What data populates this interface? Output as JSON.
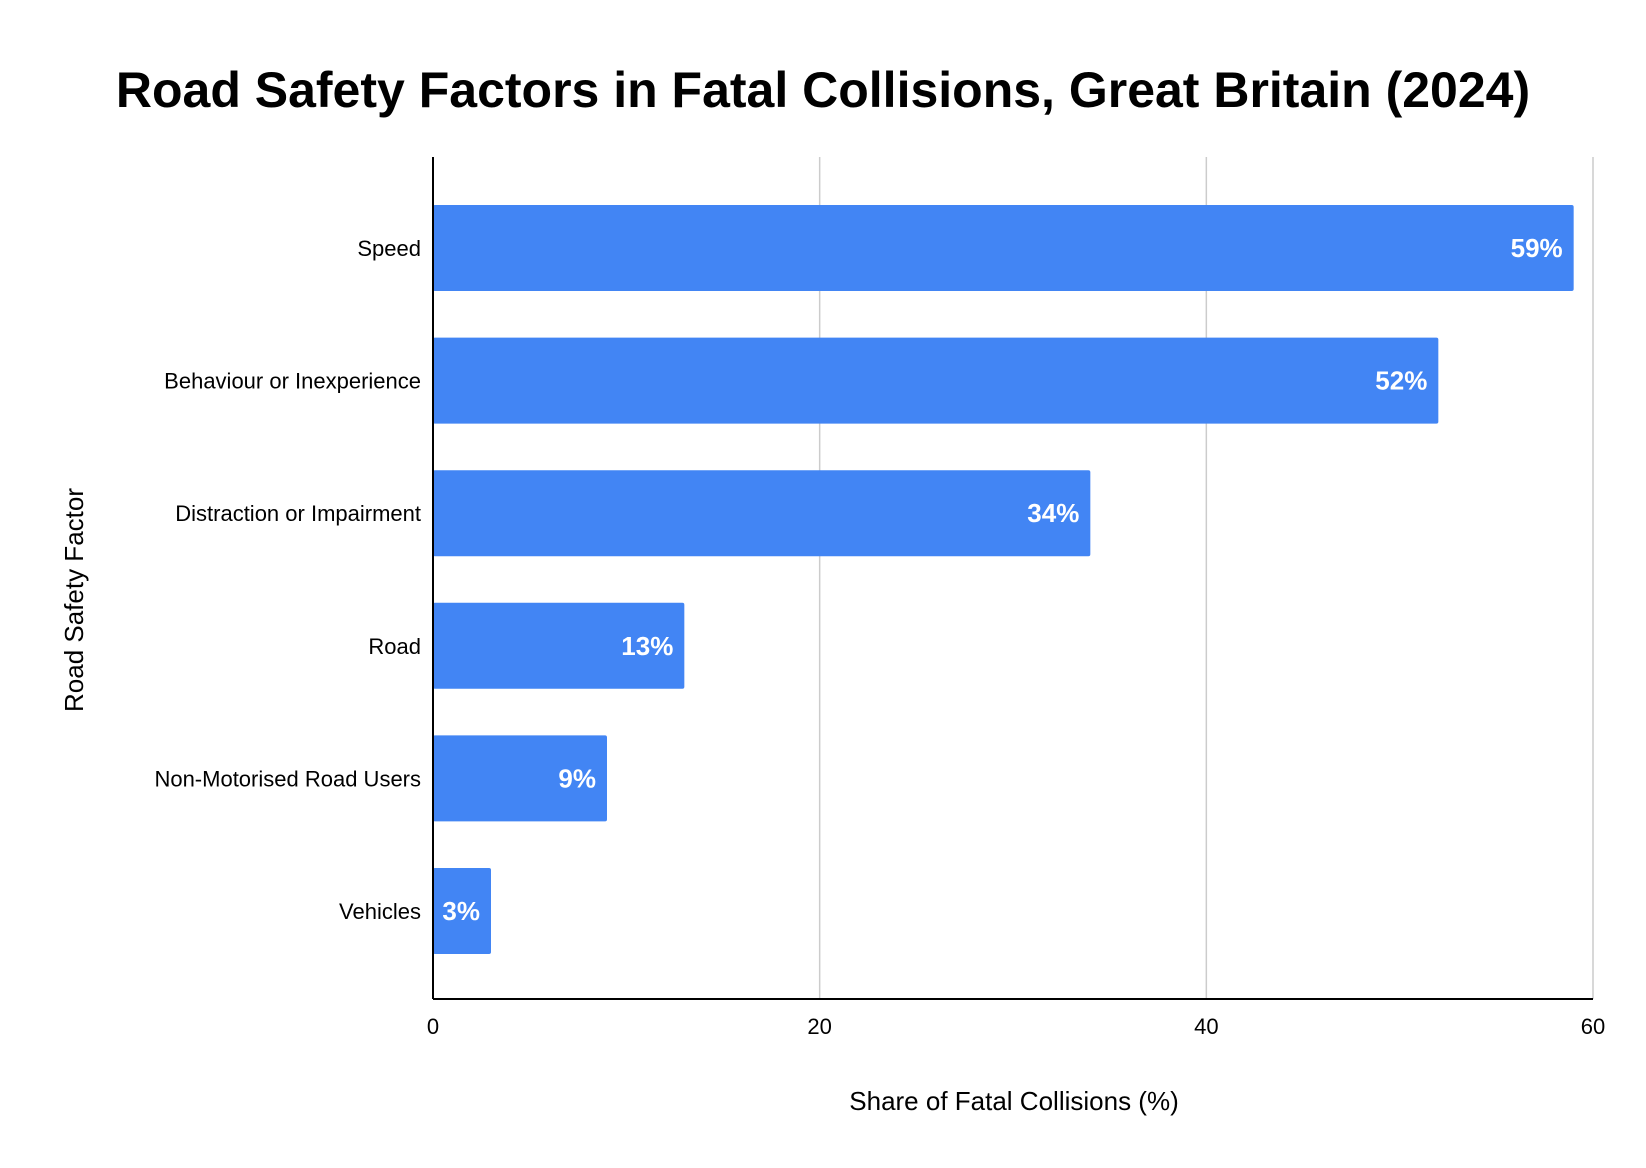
{
  "chart_data": {
    "type": "bar",
    "orientation": "horizontal",
    "title": "Road Safety Factors in Fatal Collisions, Great Britain (2024)",
    "xlabel": "Share of Fatal Collisions (%)",
    "ylabel": "Road Safety Factor",
    "categories": [
      "Speed",
      "Behaviour or Inexperience",
      "Distraction or Impairment",
      "Road",
      "Non-Motorised Road Users",
      "Vehicles"
    ],
    "values": [
      59,
      52,
      34,
      13,
      9,
      3
    ],
    "data_labels": [
      "59%",
      "52%",
      "34%",
      "13%",
      "9%",
      "3%"
    ],
    "xlim": [
      0,
      60
    ],
    "xticks": [
      0,
      20,
      40,
      60
    ],
    "xtick_labels": [
      "0",
      "20",
      "40",
      "60"
    ],
    "grid": true,
    "legend": "none",
    "colors": {
      "bar": "#4285f4",
      "grid": "#cccccc",
      "axis": "#000000"
    }
  }
}
